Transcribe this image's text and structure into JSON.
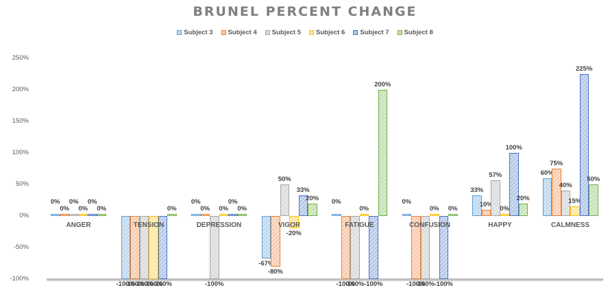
{
  "chart_data": {
    "type": "bar",
    "title": "BRUNEL PERCENT CHANGE",
    "xlabel": "",
    "ylabel": "",
    "ylim": [
      -100,
      250
    ],
    "yticks": [
      "250%",
      "200%",
      "150%",
      "100%",
      "50%",
      "0%",
      "-50%",
      "-100%"
    ],
    "legend_position": "top",
    "grid": false,
    "categories": [
      "ANGER",
      "TENSION",
      "DEPRESSION",
      "VIGOR",
      "FATIGUE",
      "CONFUSION",
      "HAPPY",
      "CALMNESS"
    ],
    "series": [
      {
        "name": "Subject 3",
        "fill": "#bdd7ee",
        "stroke": "#5b9bd5",
        "values": [
          0,
          -100,
          0,
          -67,
          0,
          0,
          33,
          60
        ]
      },
      {
        "name": "Subject 4",
        "fill": "#f8cbad",
        "stroke": "#ed7d31",
        "values": [
          0,
          -100,
          0,
          -80,
          -100,
          -100,
          10,
          75
        ]
      },
      {
        "name": "Subject 5",
        "fill": "#dbdbdb",
        "stroke": "#a5a5a5",
        "values": [
          0,
          -100,
          -100,
          50,
          -100,
          -100,
          57,
          40
        ]
      },
      {
        "name": "Subject 6",
        "fill": "#ffe699",
        "stroke": "#ffc000",
        "values": [
          0,
          -100,
          0,
          -20,
          0,
          0,
          0,
          15
        ]
      },
      {
        "name": "Subject 7",
        "fill": "#b4c7e7",
        "stroke": "#4472c4",
        "values": [
          0,
          -100,
          0,
          33,
          -100,
          -100,
          100,
          225
        ]
      },
      {
        "name": "Subject 8",
        "fill": "#c5e0b4",
        "stroke": "#70ad47",
        "values": [
          0,
          0,
          0,
          20,
          200,
          0,
          20,
          50
        ]
      }
    ]
  }
}
